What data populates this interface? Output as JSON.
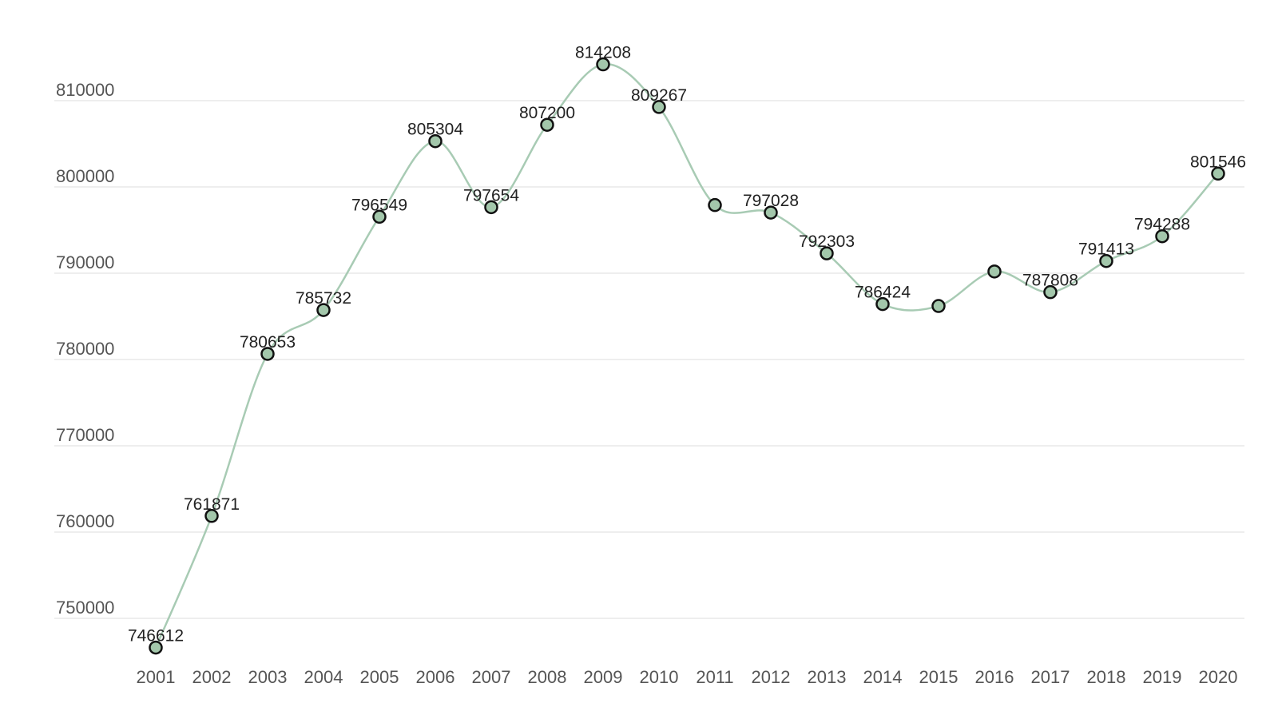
{
  "chart_data": {
    "type": "line",
    "categories": [
      "2001",
      "2002",
      "2003",
      "2004",
      "2005",
      "2006",
      "2007",
      "2008",
      "2009",
      "2010",
      "2011",
      "2012",
      "2013",
      "2014",
      "2015",
      "2016",
      "2017",
      "2018",
      "2019",
      "2020"
    ],
    "series": [
      {
        "values": [
          746612,
          761871,
          780653,
          785732,
          796549,
          805304,
          797654,
          807200,
          814208,
          809267,
          797900,
          797028,
          792303,
          786424,
          786200,
          790200,
          787808,
          791413,
          794288,
          801546
        ]
      }
    ],
    "data_labels": [
      "746612",
      "761871",
      "780653",
      "785732",
      "796549",
      "805304",
      "797654",
      "807200",
      "814208",
      "809267",
      "",
      "797028",
      "792303",
      "786424",
      "",
      "",
      "787808",
      "791413",
      "794288",
      "801546"
    ],
    "y_ticks": [
      "750000",
      "760000",
      "770000",
      "780000",
      "790000",
      "800000",
      "810000"
    ],
    "y_tick_values": [
      750000,
      760000,
      770000,
      780000,
      790000,
      800000,
      810000
    ],
    "ylim": [
      741000,
      816000
    ],
    "grid": true,
    "line_style": "smooth",
    "title": "",
    "xlabel": "",
    "ylabel": "",
    "colors": {
      "line": "#a8cbb4",
      "marker_fill": "#a3c7ab",
      "marker_stroke": "#111111",
      "grid": "#e3e3e3"
    }
  }
}
